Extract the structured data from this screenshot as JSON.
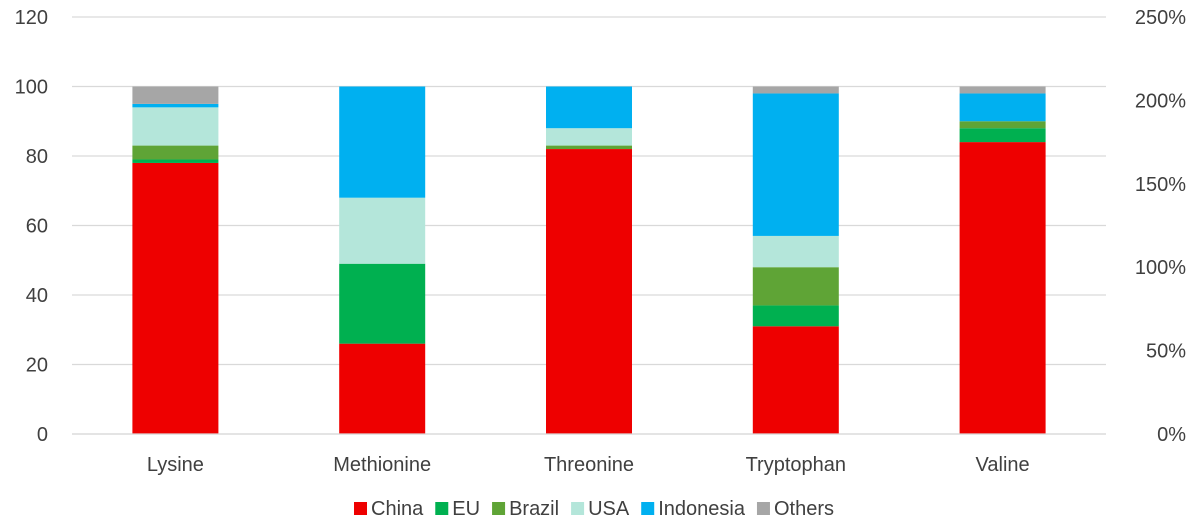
{
  "chart_data": {
    "type": "bar",
    "stacked": true,
    "categories": [
      "Lysine",
      "Methionine",
      "Threonine",
      "Tryptophan",
      "Valine"
    ],
    "series": [
      {
        "name": "China",
        "color": "#EE0000",
        "values": [
          78,
          26,
          82,
          31,
          84
        ]
      },
      {
        "name": "EU",
        "color": "#00B050",
        "values": [
          1,
          23,
          0,
          6,
          4
        ]
      },
      {
        "name": "Brazil",
        "color": "#5FA436",
        "values": [
          4,
          0,
          1,
          11,
          2
        ]
      },
      {
        "name": "USA",
        "color": "#B4E6DA",
        "values": [
          11,
          19,
          5,
          9,
          0
        ]
      },
      {
        "name": "Indonesia",
        "color": "#00B0F0",
        "values": [
          1,
          32,
          12,
          41,
          8
        ]
      },
      {
        "name": "Others",
        "color": "#A6A6A6",
        "values": [
          5,
          0,
          0,
          2,
          2
        ]
      }
    ],
    "ylim": [
      0,
      120
    ],
    "yticks": [
      "0",
      "20",
      "40",
      "60",
      "80",
      "100",
      "120"
    ],
    "y2lim": [
      0,
      250
    ],
    "y2ticks": [
      "0%",
      "50%",
      "100%",
      "150%",
      "200%",
      "250%"
    ],
    "gridlines": true,
    "legend_position": "bottom"
  }
}
